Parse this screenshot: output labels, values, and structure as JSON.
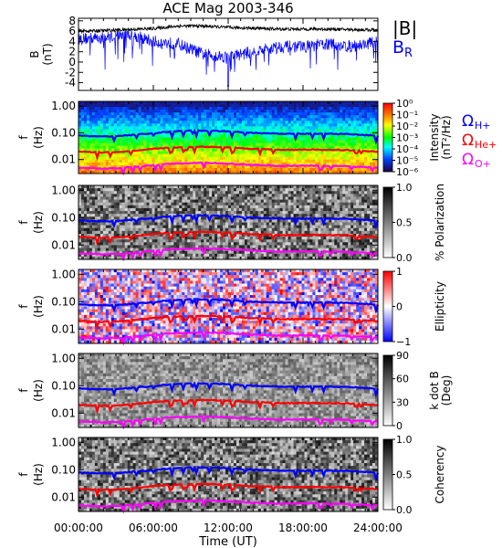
{
  "chart_data": {
    "type": "multi-panel",
    "title": "ACE Mag 2003-346",
    "xlabel": "Time (UT)",
    "x_ticks": [
      "00:00:00",
      "06:00:00",
      "12:00:00",
      "18:00:00",
      "24:00:00"
    ],
    "x_range_hours": [
      0,
      24
    ],
    "panels": [
      {
        "type": "line",
        "ylabel": "B",
        "yunit": "(nT)",
        "ylim": [
          -5.5,
          8.5
        ],
        "y_ticks": [
          "8",
          "6",
          "4",
          "2",
          "0",
          "-2",
          "-4"
        ],
        "y_tick_values": [
          8,
          6,
          4,
          2,
          0,
          -2,
          -4
        ],
        "legend": [
          {
            "label": "|B|",
            "color": "#000000"
          },
          {
            "label": "B",
            "sub": "R",
            "color": "#0000ff"
          }
        ],
        "series": [
          {
            "name": "|B|",
            "color": "#000000",
            "hours": [
              0,
              2,
              4,
              6,
              8,
              10,
              12,
              14,
              16,
              18,
              20,
              22,
              24
            ],
            "values": [
              6.0,
              6.1,
              6.3,
              6.5,
              7.0,
              7.0,
              6.7,
              6.6,
              6.4,
              6.4,
              6.4,
              6.3,
              6.2
            ]
          },
          {
            "name": "B_R",
            "color": "#0000ff",
            "hours": [
              0,
              2,
              4,
              6,
              8,
              10,
              12,
              14,
              16,
              18,
              20,
              22,
              24
            ],
            "values": [
              4.5,
              4.7,
              5.5,
              4.0,
              3.5,
              1.5,
              1.0,
              2.0,
              3.0,
              3.0,
              3.5,
              3.0,
              4.0
            ],
            "min_value": -4.7
          }
        ]
      },
      {
        "type": "heatmap",
        "colormap": "rainbow",
        "ylabel": "f",
        "yunit": "(Hz)",
        "y_ticks": [
          "1.00",
          "0.10",
          "0.01"
        ],
        "y_log_range": [
          0.003,
          1.5
        ],
        "colorbar_label": "Intensity",
        "colorbar_unit": "(nT²/Hz)",
        "colorbar_ticks": [
          "10⁰",
          "10⁻¹",
          "10⁻²",
          "10⁻³",
          "10⁻⁴",
          "10⁻⁵",
          "10⁻⁶"
        ]
      },
      {
        "type": "heatmap",
        "colormap": "gray",
        "ylabel": "f",
        "yunit": "(Hz)",
        "y_ticks": [
          "1.00",
          "0.10",
          "0.01"
        ],
        "colorbar_label": "% Polarization",
        "colorbar_ticks": [
          "1.0",
          "0.5",
          "0.0"
        ]
      },
      {
        "type": "heatmap",
        "colormap": "bwr",
        "ylabel": "f",
        "yunit": "(Hz)",
        "y_ticks": [
          "1.00",
          "0.10",
          "0.01"
        ],
        "colorbar_label": "Ellipticity",
        "colorbar_ticks": [
          "1",
          "0",
          "−1"
        ]
      },
      {
        "type": "heatmap",
        "colormap": "gray",
        "ylabel": "f",
        "yunit": "(Hz)",
        "y_ticks": [
          "1.00",
          "0.10",
          "0.01"
        ],
        "colorbar_label": "k dot B",
        "colorbar_unit": "(Deg)",
        "colorbar_ticks": [
          "90",
          "60",
          "30",
          "0"
        ]
      },
      {
        "type": "heatmap",
        "colormap": "gray",
        "ylabel": "f",
        "yunit": "(Hz)",
        "y_ticks": [
          "1.00",
          "0.10",
          "0.01"
        ],
        "colorbar_label": "Coherency",
        "colorbar_ticks": [
          "1.0",
          "0.5",
          "0.0"
        ]
      }
    ],
    "gyrofrequency_lines": [
      {
        "label": "Ω",
        "sub": "H+",
        "color": "#0000ff",
        "hz_typical": 0.095
      },
      {
        "label": "Ω",
        "sub": "He+",
        "color": "#ff0000",
        "hz_typical": 0.024
      },
      {
        "label": "Ω",
        "sub": "O+",
        "color": "#ff00ff",
        "hz_typical": 0.006
      }
    ]
  }
}
